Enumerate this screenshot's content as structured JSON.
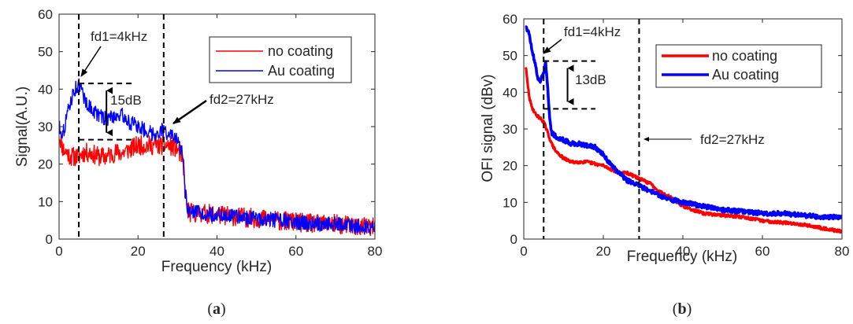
{
  "chart_data": [
    {
      "panel": "a",
      "type": "line",
      "sublabel_open": "(",
      "sublabel_letter": "a",
      "sublabel_close": ")",
      "xlabel": "Frequency (kHz)",
      "ylabel": "Signal(A.U.)",
      "xlim": [
        0,
        80
      ],
      "ylim": [
        0,
        60
      ],
      "xticks": [
        0,
        20,
        40,
        60,
        80
      ],
      "yticks": [
        0,
        10,
        20,
        30,
        40,
        50,
        60
      ],
      "grid": false,
      "legend_position": "top-right",
      "series": [
        {
          "name": "no coating",
          "color": "#ff0000",
          "noise": 2.6,
          "x": [
            0,
            1,
            2,
            3,
            4,
            5,
            6,
            8,
            10,
            12,
            14,
            16,
            18,
            20,
            22,
            24,
            26,
            28,
            30,
            31,
            31.5,
            32,
            32.5,
            33,
            35,
            40,
            45,
            50,
            55,
            60,
            65,
            70,
            75,
            80
          ],
          "y": [
            28,
            24,
            23,
            22,
            22,
            22,
            23,
            23,
            22,
            22,
            23,
            23,
            24,
            25,
            25,
            25,
            25,
            25,
            24,
            22,
            18,
            12,
            8,
            7,
            7,
            6.5,
            6,
            5.5,
            5,
            4.5,
            4,
            4,
            3.5,
            3
          ]
        },
        {
          "name": "Au coating",
          "color": "#0000ff",
          "noise": 2.0,
          "x": [
            0,
            1,
            2,
            3,
            4,
            5,
            6,
            7,
            8,
            10,
            12,
            14,
            16,
            18,
            20,
            22,
            24,
            26,
            28,
            30,
            31,
            31.5,
            32,
            32.5,
            33,
            35,
            40,
            45,
            50,
            55,
            60,
            65,
            70,
            75,
            80
          ],
          "y": [
            30,
            28,
            33,
            37,
            40,
            41,
            39,
            36,
            35,
            33,
            32,
            33,
            33,
            31,
            30,
            29,
            28,
            29,
            28,
            26,
            24,
            20,
            12,
            8,
            7,
            7,
            6.5,
            6,
            5.5,
            5,
            4.5,
            4,
            4,
            3.5,
            3
          ]
        }
      ],
      "annotations": {
        "fd1": "fd1=4kHz",
        "fd2": "fd2=27kHz",
        "diff": "15dB"
      },
      "vlines": [
        5,
        26.5
      ],
      "diff_y": [
        41.5,
        26.5
      ],
      "diff_x": 12
    },
    {
      "panel": "b",
      "type": "line",
      "sublabel_open": "(",
      "sublabel_letter": "b",
      "sublabel_close": ")",
      "xlabel": "Frequency (kHz)",
      "ylabel": "OFI signal (dBv)",
      "xlim": [
        0,
        80
      ],
      "ylim": [
        0,
        60
      ],
      "xticks": [
        0,
        20,
        40,
        60,
        80
      ],
      "yticks": [
        0,
        10,
        20,
        30,
        40,
        50,
        60
      ],
      "grid": false,
      "legend_position": "top-right",
      "series": [
        {
          "name": "no coating",
          "color": "#ff0000",
          "noise": 0.4,
          "x": [
            0.5,
            1,
            1.5,
            2,
            3,
            4,
            5,
            6,
            7,
            8,
            10,
            12,
            14,
            16,
            18,
            20,
            22,
            24,
            26,
            28,
            30,
            32,
            33,
            34,
            36,
            40,
            45,
            50,
            55,
            60,
            65,
            70,
            75,
            80
          ],
          "y": [
            47,
            42,
            38,
            36,
            34,
            33,
            32,
            29,
            26,
            24,
            22,
            21,
            21,
            21,
            20.5,
            20,
            19,
            18,
            18,
            17,
            16,
            15,
            14,
            13,
            12,
            9,
            7,
            6.5,
            6,
            5,
            4.5,
            4,
            3,
            2
          ]
        },
        {
          "name": "Au coating",
          "color": "#0000ff",
          "noise": 0.6,
          "x": [
            0.5,
            1,
            1.5,
            2,
            3,
            3.5,
            4,
            5,
            5.5,
            6,
            6.5,
            7,
            8,
            10,
            12,
            14,
            16,
            18,
            20,
            22,
            24,
            26,
            28,
            30,
            32,
            34,
            36,
            40,
            45,
            50,
            55,
            60,
            65,
            70,
            75,
            80
          ],
          "y": [
            58,
            57,
            55,
            52,
            47,
            44,
            43,
            45,
            48,
            42,
            33,
            29,
            28,
            27,
            26,
            26,
            25.5,
            25,
            23,
            20,
            18,
            16,
            15,
            14,
            13,
            12,
            11,
            10,
            9,
            8,
            7.5,
            7,
            7,
            6.5,
            6,
            6
          ]
        }
      ],
      "annotations": {
        "fd1": "fd1=4kHz",
        "fd2": "fd2=27kHz",
        "diff": "13dB"
      },
      "vlines": [
        5,
        29
      ],
      "diff_y": [
        48.5,
        35.5
      ],
      "diff_x": 11
    }
  ]
}
